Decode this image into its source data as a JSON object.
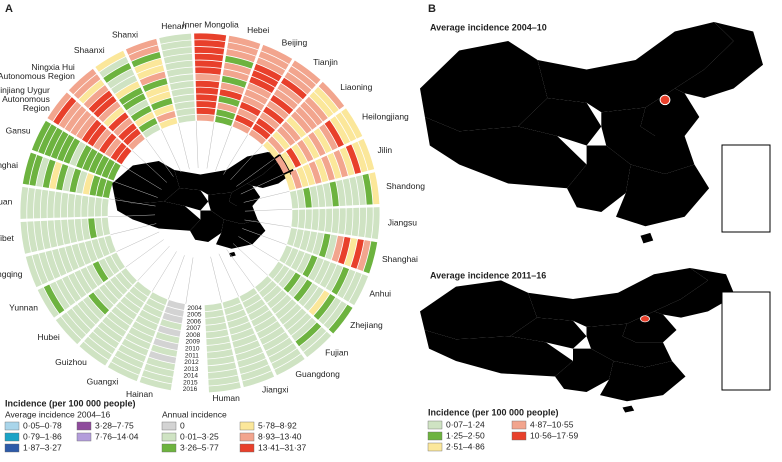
{
  "chart_data": {
    "type": "radial-heatmap",
    "panel_a": "A",
    "panel_b": "B",
    "years": [
      "2004",
      "2005",
      "2006",
      "2007",
      "2008",
      "2009",
      "2010",
      "2011",
      "2012",
      "2013",
      "2014",
      "2015",
      "2016"
    ],
    "provinces": [
      [
        "Henan"
      ],
      [
        "Inner Mongolia"
      ],
      [
        "Hebei"
      ],
      [
        "Beijing"
      ],
      [
        "Tianjin"
      ],
      [
        "Liaoning"
      ],
      [
        "Heilongjiang"
      ],
      [
        "Jilin"
      ],
      [
        "Shandong"
      ],
      [
        "Jiangsu"
      ],
      [
        "Shanghai"
      ],
      [
        "Anhui"
      ],
      [
        "Zhejiang"
      ],
      [
        "Fujian"
      ],
      [
        "Guangdong"
      ],
      [
        "Jiangxi"
      ],
      [
        "Human"
      ],
      [
        "Hainan"
      ],
      [
        "Guangxi"
      ],
      [
        "Guizhou"
      ],
      [
        "Hubei"
      ],
      [
        "Yunnan"
      ],
      [
        "Chongqing"
      ],
      [
        "Tibet"
      ],
      [
        "Sichuan"
      ],
      [
        "Qinghai"
      ],
      [
        "Gansu"
      ],
      [
        "Xinjiang Uygur",
        "Autonomous",
        "Region"
      ],
      [
        "Ningxia Hui",
        "Autonomous Region"
      ],
      [
        "Shaanxi"
      ],
      [
        "Shanxi"
      ]
    ],
    "cells": [
      [
        1,
        1,
        1,
        1,
        1,
        1,
        1,
        1,
        1,
        1,
        1,
        1,
        1
      ],
      [
        4,
        5,
        5,
        5,
        5,
        5,
        4,
        5,
        5,
        5,
        5,
        5,
        5
      ],
      [
        2,
        2,
        4,
        2,
        5,
        4,
        2,
        4,
        4,
        2,
        4,
        4,
        4
      ],
      [
        4,
        5,
        4,
        5,
        4,
        4,
        4,
        5,
        5,
        5,
        4,
        4,
        4
      ],
      [
        4,
        5,
        5,
        4,
        5,
        4,
        5,
        4,
        4,
        5,
        4,
        4,
        4
      ],
      [
        3,
        4,
        3,
        4,
        4,
        3,
        4,
        4,
        4,
        4,
        3,
        3,
        4
      ],
      [
        4,
        3,
        5,
        3,
        4,
        3,
        4,
        3,
        4,
        5,
        3,
        3,
        3
      ],
      [
        3,
        4,
        3,
        3,
        4,
        3,
        4,
        3,
        4,
        3,
        5,
        3,
        3
      ],
      [
        1,
        1,
        2,
        1,
        1,
        1,
        2,
        1,
        1,
        1,
        1,
        2,
        3
      ],
      [
        1,
        1,
        1,
        1,
        1,
        1,
        1,
        1,
        1,
        1,
        1,
        1,
        1
      ],
      [
        1,
        1,
        1,
        1,
        1,
        2,
        1,
        4,
        5,
        3,
        5,
        4,
        2
      ],
      [
        1,
        1,
        1,
        1,
        2,
        1,
        1,
        1,
        1,
        2,
        1,
        1,
        1
      ],
      [
        1,
        1,
        1,
        2,
        1,
        2,
        1,
        1,
        3,
        2,
        1,
        1,
        2
      ],
      [
        1,
        1,
        1,
        1,
        1,
        1,
        1,
        1,
        1,
        1,
        2,
        1,
        1
      ],
      [
        1,
        1,
        1,
        1,
        1,
        1,
        1,
        1,
        1,
        1,
        1,
        1,
        1
      ],
      [
        1,
        1,
        1,
        1,
        1,
        1,
        1,
        1,
        1,
        1,
        1,
        1,
        1
      ],
      [
        1,
        1,
        1,
        1,
        1,
        1,
        1,
        1,
        1,
        1,
        1,
        1,
        1
      ],
      [
        0,
        0,
        0,
        1,
        0,
        1,
        0,
        1,
        0,
        1,
        1,
        1,
        1
      ],
      [
        1,
        1,
        1,
        1,
        1,
        1,
        1,
        1,
        1,
        1,
        1,
        1,
        1
      ],
      [
        1,
        1,
        1,
        1,
        1,
        1,
        1,
        1,
        1,
        1,
        1,
        1,
        1
      ],
      [
        1,
        1,
        1,
        1,
        1,
        1,
        2,
        1,
        1,
        1,
        1,
        1,
        1
      ],
      [
        1,
        1,
        1,
        2,
        1,
        1,
        1,
        1,
        1,
        1,
        1,
        2,
        1
      ],
      [
        1,
        1,
        1,
        1,
        1,
        1,
        1,
        1,
        1,
        1,
        1,
        1,
        1
      ],
      [
        1,
        1,
        2,
        1,
        1,
        1,
        1,
        1,
        1,
        1,
        1,
        1,
        1
      ],
      [
        1,
        1,
        1,
        1,
        1,
        1,
        1,
        1,
        1,
        1,
        1,
        1,
        1
      ],
      [
        2,
        2,
        2,
        3,
        1,
        2,
        1,
        2,
        3,
        2,
        1,
        2,
        2
      ],
      [
        2,
        2,
        2,
        2,
        2,
        2,
        1,
        2,
        2,
        2,
        2,
        2,
        2
      ],
      [
        5,
        5,
        4,
        5,
        4,
        5,
        5,
        4,
        4,
        4,
        4,
        5,
        4
      ],
      [
        4,
        5,
        5,
        4,
        5,
        3,
        4,
        5,
        5,
        4,
        3,
        4,
        4
      ],
      [
        1,
        2,
        3,
        2,
        1,
        2,
        2,
        3,
        1,
        1,
        2,
        1,
        3
      ],
      [
        3,
        4,
        3,
        2,
        3,
        3,
        2,
        4,
        3,
        3,
        2,
        4,
        4
      ]
    ],
    "legend_a": {
      "title": "Incidence (per 100 000 people)",
      "average_title": "Average incidence 2004–16",
      "average": [
        {
          "label": "0·05–0·78",
          "color": "#a9d5ea"
        },
        {
          "label": "0·79–1·86",
          "color": "#1ba3c6"
        },
        {
          "label": "1·87–3·27",
          "color": "#2d5aa8"
        },
        {
          "label": "3·28–7·75",
          "color": "#8e4b9c"
        },
        {
          "label": "7·76–14·04",
          "color": "#b39ddb"
        }
      ],
      "annual_title": "Annual incidence",
      "annual": [
        {
          "label": "0",
          "color": "#d3d3d3"
        },
        {
          "label": "0·01–3·25",
          "color": "#cfe3c3"
        },
        {
          "label": "3·26–5·77",
          "color": "#6db33f"
        },
        {
          "label": "5·78–8·92",
          "color": "#fbe79a"
        },
        {
          "label": "8·93–13·40",
          "color": "#f2a58e"
        },
        {
          "label": "13·41–31·37",
          "color": "#e8402b"
        }
      ]
    },
    "map_titles": [
      "Average incidence 2004–10",
      "Average incidence 2011–16"
    ],
    "legend_b": {
      "title": "Incidence (per 100 000 people)",
      "items": [
        {
          "label": "0·07–1·24",
          "color": "#cfe3c3"
        },
        {
          "label": "1·25–2·50",
          "color": "#6db33f"
        },
        {
          "label": "2·51–4·86",
          "color": "#fbe79a"
        },
        {
          "label": "4·87–10·55",
          "color": "#f2a58e"
        },
        {
          "label": "10·56–17·59",
          "color": "#e8402b"
        }
      ]
    }
  }
}
